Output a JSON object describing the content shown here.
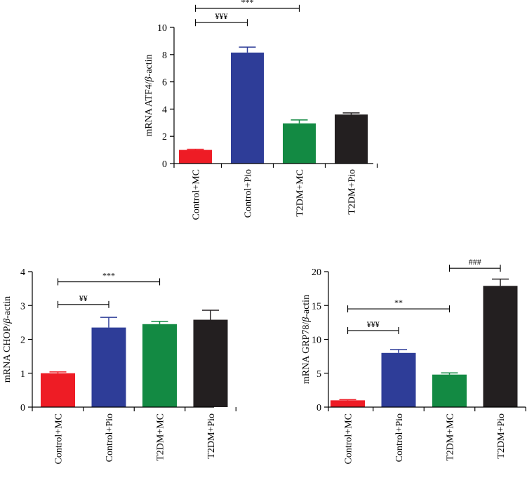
{
  "colors": {
    "Control+MC": "#ee1c25",
    "Control+Pio": "#2e3d98",
    "T2DM+MC": "#138a43",
    "T2DM+Pio": "#231f20",
    "axis": "#000000"
  },
  "chart_data": [
    {
      "id": "atf4",
      "type": "bar",
      "title": "",
      "ylabel_prefix": "mRNA ATF4/",
      "ylabel_beta": "β",
      "ylabel_suffix": "-actin",
      "ylim": [
        0,
        10
      ],
      "yticks": [
        0,
        2,
        4,
        6,
        8,
        10
      ],
      "categories": [
        "Control+MC",
        "Control+Pio",
        "T2DM+MC",
        "T2DM+Pio"
      ],
      "values": [
        1.0,
        8.15,
        2.95,
        3.6
      ],
      "errors": [
        0.05,
        0.4,
        0.25,
        0.12
      ],
      "significance": [
        {
          "from": 0,
          "to": 1,
          "level": 10.35,
          "label": "¥¥¥"
        },
        {
          "from": 0,
          "to": 2,
          "level": 11.4,
          "label": "***"
        }
      ]
    },
    {
      "id": "chop",
      "type": "bar",
      "title": "",
      "ylabel_prefix": "mRNA CHOP/",
      "ylabel_beta": "β",
      "ylabel_suffix": "-actin",
      "ylim": [
        0,
        4
      ],
      "yticks": [
        0,
        1,
        2,
        3,
        4
      ],
      "categories": [
        "Control+MC",
        "Control+Pio",
        "T2DM+MC",
        "T2DM+Pio"
      ],
      "values": [
        1.0,
        2.35,
        2.45,
        2.58
      ],
      "errors": [
        0.04,
        0.3,
        0.08,
        0.28
      ],
      "significance": [
        {
          "from": 0,
          "to": 1,
          "level": 3.03,
          "label": "¥¥"
        },
        {
          "from": 0,
          "to": 2,
          "level": 3.7,
          "label": "***"
        }
      ]
    },
    {
      "id": "grp78",
      "type": "bar",
      "title": "",
      "ylabel_prefix": "mRNA GRP78/",
      "ylabel_beta": "β",
      "ylabel_suffix": "-actin",
      "ylim": [
        0,
        20
      ],
      "yticks": [
        0,
        5,
        10,
        15,
        20
      ],
      "categories": [
        "Control+MC",
        "Control+Pio",
        "T2DM+MC",
        "T2DM+Pio"
      ],
      "values": [
        1.0,
        8.0,
        4.8,
        17.9
      ],
      "errors": [
        0.1,
        0.5,
        0.25,
        1.0
      ],
      "significance": [
        {
          "from": 0,
          "to": 1,
          "level": 11.3,
          "label": "¥¥¥"
        },
        {
          "from": 0,
          "to": 2,
          "level": 14.5,
          "label": "**"
        },
        {
          "from": 2,
          "to": 3,
          "level": 20.5,
          "label": "###"
        }
      ]
    }
  ]
}
